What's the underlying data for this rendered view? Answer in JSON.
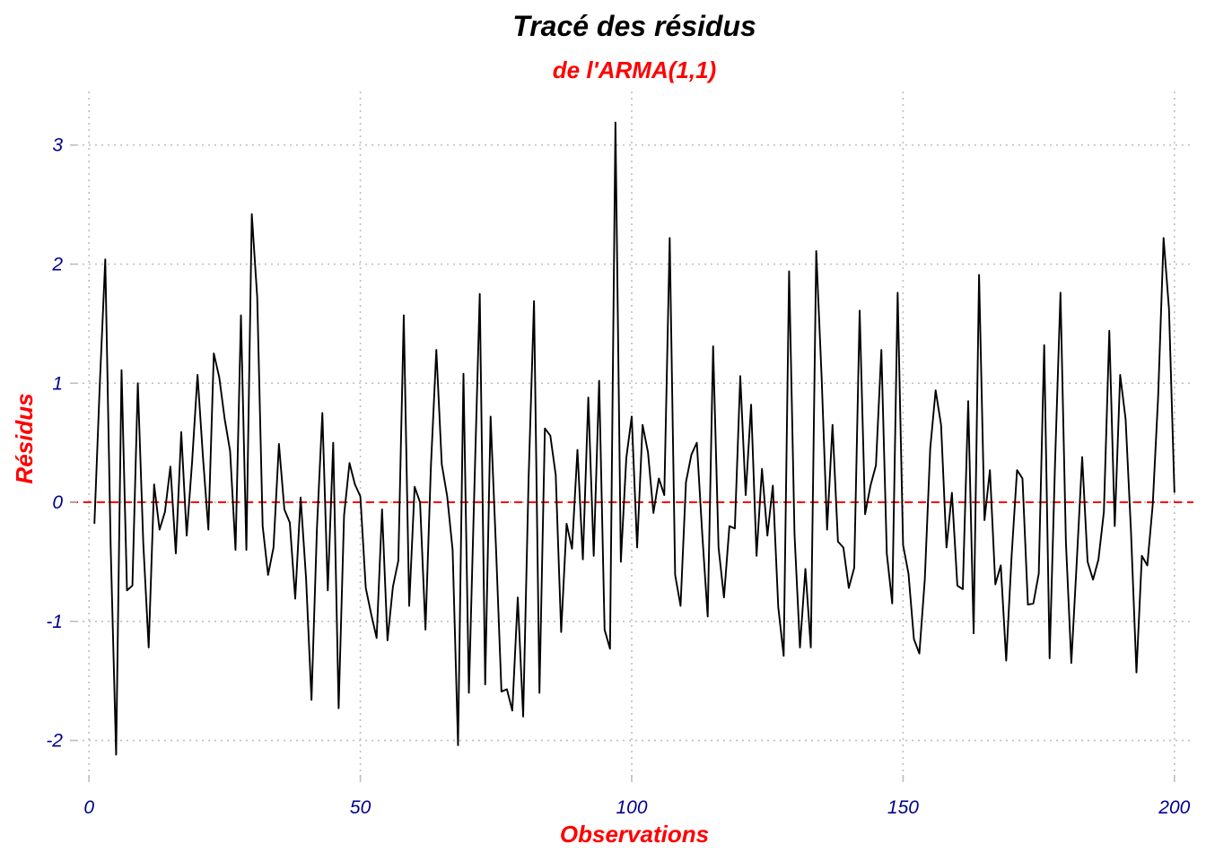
{
  "chart_data": {
    "type": "line",
    "title": "Tracé des résidus",
    "subtitle": "de l'ARMA(1,1)",
    "xlabel": "Observations",
    "ylabel": "Résidus",
    "xlim": [
      -3.5,
      203.5
    ],
    "ylim": [
      -2.35,
      3.45
    ],
    "x_ticks": [
      0,
      50,
      100,
      150,
      200
    ],
    "y_ticks": [
      -2,
      -1,
      0,
      1,
      2,
      3
    ],
    "reference_line": {
      "y": 0,
      "style": "dashed",
      "color": "#ff0000"
    },
    "grid": "dotted",
    "colors": {
      "title": "#000000",
      "subtitle": "#ff0000",
      "axis_title": "#ff0000",
      "tick_label": "#00008b",
      "line": "#000000",
      "grid": "#bebebe"
    },
    "series": [
      {
        "x": [
          1,
          2,
          3,
          4,
          5,
          6,
          7,
          8,
          9,
          10,
          11,
          12,
          13,
          14,
          15,
          16,
          17,
          18,
          19,
          20,
          21,
          22,
          23,
          24,
          25,
          26,
          27,
          28,
          29,
          30,
          31,
          32,
          33,
          34,
          35,
          36,
          37,
          38,
          39,
          40,
          41,
          42,
          43,
          44,
          45,
          46,
          47,
          48,
          49,
          50,
          51,
          52,
          53,
          54,
          55,
          56,
          57,
          58,
          59,
          60,
          61,
          62,
          63,
          64,
          65,
          66,
          67,
          68,
          69,
          70,
          71,
          72,
          73,
          74,
          75,
          76,
          77,
          78,
          79,
          80,
          81,
          82,
          83,
          84,
          85,
          86,
          87,
          88,
          89,
          90,
          91,
          92,
          93,
          94,
          95,
          96,
          97,
          98,
          99,
          100,
          101,
          102,
          103,
          104,
          105,
          106,
          107,
          108,
          109,
          110,
          111,
          112,
          113,
          114,
          115,
          116,
          117,
          118,
          119,
          120,
          121,
          122,
          123,
          124,
          125,
          126,
          127,
          128,
          129,
          130,
          131,
          132,
          133,
          134,
          135,
          136,
          137,
          138,
          139,
          140,
          141,
          142,
          143,
          144,
          145,
          146,
          147,
          148,
          149,
          150,
          151,
          152,
          153,
          154,
          155,
          156,
          157,
          158,
          159,
          160,
          161,
          162,
          163,
          164,
          165,
          166,
          167,
          168,
          169,
          170,
          171,
          172,
          173,
          174,
          175,
          176,
          177,
          178,
          179,
          180,
          181,
          182,
          183,
          184,
          185,
          186,
          187,
          188,
          189,
          190,
          191,
          192,
          193,
          194,
          195,
          196,
          197,
          198,
          199,
          200
        ],
        "y": [
          -0.18,
          1.0,
          2.04,
          -0.38,
          -2.12,
          1.11,
          -0.74,
          -0.7,
          1.0,
          -0.34,
          -1.22,
          0.15,
          -0.23,
          -0.08,
          0.3,
          -0.43,
          0.59,
          -0.28,
          0.34,
          1.07,
          0.38,
          -0.23,
          1.25,
          1.05,
          0.7,
          0.43,
          -0.4,
          1.57,
          -0.4,
          2.42,
          1.72,
          -0.2,
          -0.61,
          -0.38,
          0.49,
          -0.06,
          -0.17,
          -0.81,
          0.04,
          -0.64,
          -1.66,
          -0.22,
          0.75,
          -0.74,
          0.5,
          -1.73,
          -0.11,
          0.33,
          0.15,
          0.05,
          -0.72,
          -0.94,
          -1.14,
          -0.06,
          -1.16,
          -0.71,
          -0.49,
          1.57,
          -0.87,
          0.13,
          0.0,
          -1.07,
          0.3,
          1.28,
          0.32,
          0.05,
          -0.4,
          -2.04,
          1.08,
          -1.6,
          0.1,
          1.75,
          -1.53,
          0.72,
          -0.39,
          -1.59,
          -1.57,
          -1.75,
          -0.8,
          -1.8,
          0.2,
          1.69,
          -1.6,
          0.62,
          0.56,
          0.23,
          -1.09,
          -0.18,
          -0.39,
          0.44,
          -0.48,
          0.88,
          -0.45,
          1.02,
          -1.07,
          -1.23,
          3.19,
          -0.5,
          0.37,
          0.72,
          -0.38,
          0.65,
          0.42,
          -0.09,
          0.2,
          0.06,
          2.22,
          -0.61,
          -0.87,
          0.17,
          0.4,
          0.5,
          -0.27,
          -0.96,
          1.31,
          -0.38,
          -0.8,
          -0.2,
          -0.22,
          1.06,
          0.06,
          0.82,
          -0.45,
          0.28,
          -0.28,
          0.14,
          -0.88,
          -1.29,
          1.94,
          -0.27,
          -1.22,
          -0.56,
          -1.22,
          2.11,
          1.04,
          -0.23,
          0.65,
          -0.33,
          -0.38,
          -0.72,
          -0.55,
          1.61,
          -0.1,
          0.14,
          0.31,
          1.28,
          -0.43,
          -0.85,
          1.76,
          -0.36,
          -0.6,
          -1.15,
          -1.27,
          -0.65,
          0.45,
          0.94,
          0.65,
          -0.38,
          0.08,
          -0.7,
          -0.73,
          0.85,
          -1.1,
          1.91,
          -0.15,
          0.27,
          -0.69,
          -0.53,
          -1.33,
          -0.45,
          0.27,
          0.2,
          -0.86,
          -0.85,
          -0.6,
          1.32,
          -1.31,
          0.33,
          1.76,
          -0.33,
          -1.35,
          -0.5,
          0.38,
          -0.5,
          -0.65,
          -0.48,
          -0.08,
          1.44,
          -0.2,
          1.07,
          0.7,
          -0.25,
          -1.43,
          -0.45,
          -0.53,
          -0.02,
          0.89,
          2.22,
          1.62,
          0.08
        ]
      }
    ]
  }
}
